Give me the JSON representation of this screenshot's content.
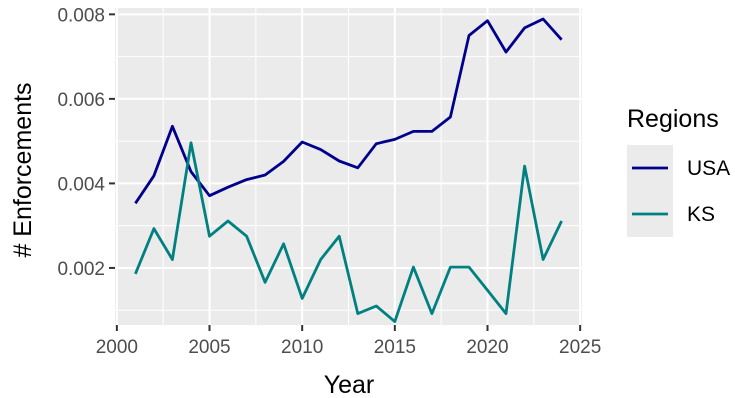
{
  "chart_data": {
    "type": "line",
    "title": "",
    "xlabel": "Year",
    "ylabel": "# Enforcements",
    "xlim": [
      1999.9,
      2025.1
    ],
    "ylim": [
      0.00065,
      0.00815
    ],
    "x_ticks": [
      2000,
      2005,
      2010,
      2015,
      2020,
      2025
    ],
    "x_tick_labels": [
      "2000",
      "2005",
      "2010",
      "2015",
      "2020",
      "2025"
    ],
    "y_ticks": [
      0.002,
      0.004,
      0.006,
      0.008
    ],
    "y_tick_labels": [
      "0.002",
      "0.004",
      "0.006",
      "0.008"
    ],
    "grid": true,
    "legend": {
      "title": "Regions",
      "position": "right"
    },
    "x": [
      2001,
      2002,
      2003,
      2004,
      2005,
      2006,
      2007,
      2008,
      2009,
      2010,
      2011,
      2012,
      2013,
      2014,
      2015,
      2016,
      2017,
      2018,
      2019,
      2020,
      2021,
      2022,
      2023,
      2024
    ],
    "series": [
      {
        "name": "USA",
        "color": "#00008b",
        "values": [
          0.00353,
          0.00418,
          0.00535,
          0.00428,
          0.00371,
          0.00391,
          0.00409,
          0.0042,
          0.00452,
          0.00498,
          0.0048,
          0.00453,
          0.00437,
          0.00494,
          0.00504,
          0.00523,
          0.00523,
          0.00557,
          0.0075,
          0.00785,
          0.00711,
          0.00768,
          0.00789,
          0.0074
        ]
      },
      {
        "name": "KS",
        "color": "#008080",
        "values": [
          0.00186,
          0.00293,
          0.0022,
          0.00496,
          0.00275,
          0.00311,
          0.00275,
          0.00166,
          0.00257,
          0.00128,
          0.0022,
          0.00275,
          0.00092,
          0.0011,
          0.00073,
          0.00202,
          0.00092,
          0.00202,
          0.00202,
          0.00147,
          0.00092,
          0.00441,
          0.0022,
          0.00311
        ]
      }
    ]
  }
}
